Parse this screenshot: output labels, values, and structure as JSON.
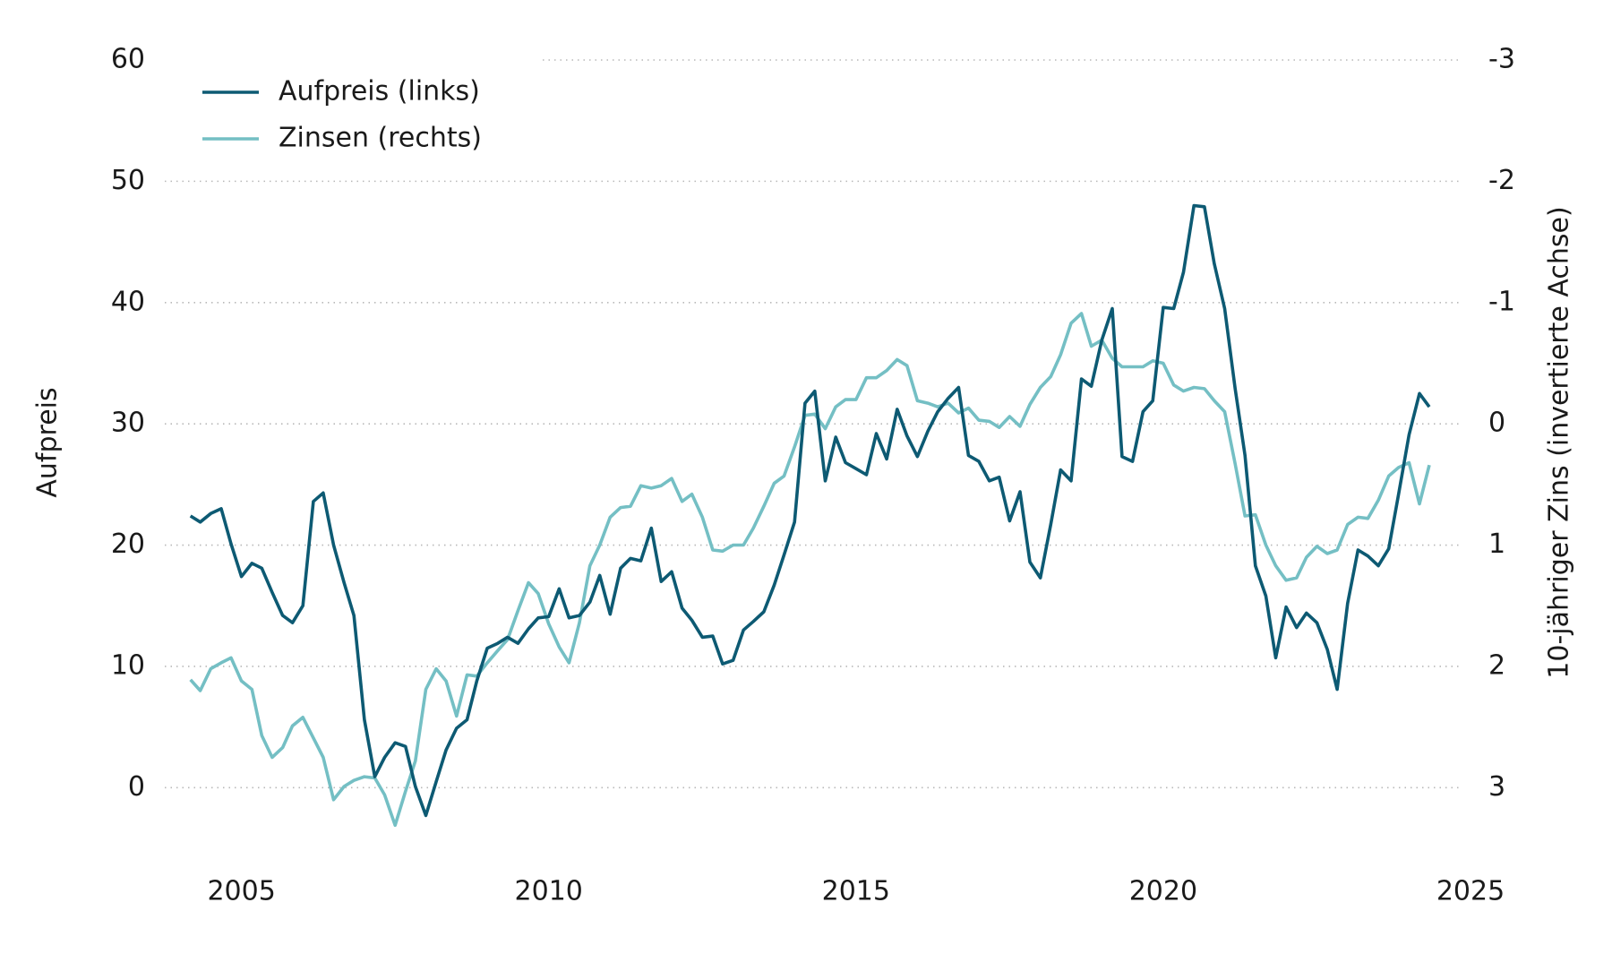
{
  "chart_data": {
    "type": "line",
    "ylabel": "Aufpreis",
    "y2label": "10-jähriger Zins (invertierte Achse)",
    "legend": "upper left",
    "grid": true,
    "xlim": [
      2004,
      2025
    ],
    "xticks": [
      2005,
      2010,
      2015,
      2020,
      2025
    ],
    "ylim": [
      -5,
      60
    ],
    "yticks": [
      0,
      10,
      20,
      30,
      40,
      50,
      60
    ],
    "y2lim": [
      3.5,
      -3
    ],
    "y2ticks": [
      -3,
      -2,
      -1,
      0,
      1,
      2,
      3
    ],
    "x": [
      2004.17,
      2004.33,
      2004.5,
      2004.67,
      2004.83,
      2005,
      2005.17,
      2005.33,
      2005.5,
      2005.67,
      2005.83,
      2006,
      2006.17,
      2006.33,
      2006.5,
      2006.67,
      2006.83,
      2007,
      2007.17,
      2007.33,
      2007.5,
      2007.67,
      2007.83,
      2008,
      2008.17,
      2008.33,
      2008.5,
      2008.67,
      2008.83,
      2009,
      2009.17,
      2009.33,
      2009.5,
      2009.67,
      2009.83,
      2010,
      2010.17,
      2010.33,
      2010.5,
      2010.67,
      2010.83,
      2011,
      2011.17,
      2011.33,
      2011.5,
      2011.67,
      2011.83,
      2012,
      2012.17,
      2012.33,
      2012.5,
      2012.67,
      2012.83,
      2013,
      2013.17,
      2013.33,
      2013.5,
      2013.67,
      2013.83,
      2014,
      2014.17,
      2014.33,
      2014.5,
      2014.67,
      2014.83,
      2015,
      2015.17,
      2015.33,
      2015.5,
      2015.67,
      2015.83,
      2016,
      2016.17,
      2016.33,
      2016.5,
      2016.67,
      2016.83,
      2017,
      2017.17,
      2017.33,
      2017.5,
      2017.67,
      2017.83,
      2018,
      2018.17,
      2018.33,
      2018.5,
      2018.67,
      2018.83,
      2019,
      2019.17,
      2019.33,
      2019.5,
      2019.67,
      2019.83,
      2020,
      2020.17,
      2020.33,
      2020.5,
      2020.67,
      2020.83,
      2021,
      2021.17,
      2021.33,
      2021.5,
      2021.67,
      2021.83,
      2022,
      2022.17,
      2022.33,
      2022.5,
      2022.67,
      2022.83,
      2023,
      2023.17,
      2023.33,
      2023.5,
      2023.67,
      2023.83,
      2024,
      2024.17,
      2024.33
    ],
    "series": [
      {
        "name": "Aufpreis (links)",
        "color": "#0d5a73",
        "values": [
          22.4,
          21.9,
          22.6,
          23.0,
          20.1,
          17.4,
          18.5,
          18.1,
          16.1,
          14.2,
          13.6,
          15.0,
          23.6,
          24.3,
          20.0,
          16.9,
          14.2,
          5.6,
          0.9,
          2.5,
          3.7,
          3.4,
          0.1,
          -2.3,
          0.5,
          3.1,
          4.9,
          5.6,
          8.8,
          11.5,
          11.9,
          12.4,
          11.9,
          13.1,
          14.0,
          14.1,
          16.4,
          14.0,
          14.2,
          15.3,
          17.5,
          14.3,
          18.1,
          18.9,
          18.7,
          21.4,
          17.0,
          17.8,
          14.8,
          13.8,
          12.4,
          12.5,
          10.2,
          10.5,
          13.0,
          13.7,
          14.5,
          16.7,
          19.2,
          21.9,
          31.7,
          32.7,
          25.3,
          28.9,
          26.8,
          26.3,
          25.8,
          29.2,
          27.1,
          31.2,
          29.0,
          27.3,
          29.4,
          31.0,
          32.1,
          33.0,
          27.4,
          26.9,
          25.3,
          25.6,
          22.0,
          24.4,
          18.6,
          17.3,
          21.7,
          26.2,
          25.3,
          33.7,
          33.1,
          36.9,
          39.5,
          27.3,
          26.9,
          31.0,
          31.9,
          39.6,
          39.5,
          42.5,
          48.0,
          47.9,
          43.2,
          39.5,
          32.9,
          27.4,
          18.3,
          15.8,
          10.7,
          14.9,
          13.2,
          14.4,
          13.6,
          11.4,
          8.1,
          15.2,
          19.6,
          19.1,
          18.3,
          19.7,
          24.2,
          29.1,
          32.5,
          31.4
        ]
      },
      {
        "name": "Zinsen (rechts)",
        "color": "#74bfc4",
        "axis": "y2",
        "values": [
          2.11,
          2.2,
          2.02,
          1.97,
          1.93,
          2.12,
          2.19,
          2.57,
          2.75,
          2.67,
          2.49,
          2.42,
          2.59,
          2.75,
          3.1,
          2.99,
          2.94,
          2.91,
          2.92,
          3.06,
          3.31,
          3.03,
          2.78,
          2.19,
          2.02,
          2.12,
          2.41,
          2.07,
          2.08,
          1.97,
          1.87,
          1.78,
          1.54,
          1.31,
          1.4,
          1.65,
          1.84,
          1.97,
          1.64,
          1.17,
          1.0,
          0.77,
          0.69,
          0.68,
          0.51,
          0.53,
          0.51,
          0.45,
          0.64,
          0.58,
          0.77,
          1.04,
          1.05,
          1.0,
          1.0,
          0.86,
          0.68,
          0.49,
          0.43,
          0.19,
          -0.07,
          -0.08,
          0.04,
          -0.14,
          -0.2,
          -0.2,
          -0.38,
          -0.38,
          -0.44,
          -0.53,
          -0.48,
          -0.19,
          -0.17,
          -0.14,
          -0.17,
          -0.09,
          -0.13,
          -0.03,
          -0.02,
          0.03,
          -0.06,
          0.02,
          -0.16,
          -0.3,
          -0.39,
          -0.57,
          -0.83,
          -0.91,
          -0.64,
          -0.69,
          -0.54,
          -0.47,
          -0.47,
          -0.47,
          -0.52,
          -0.5,
          -0.32,
          -0.27,
          -0.3,
          -0.29,
          -0.19,
          -0.1,
          0.33,
          0.76,
          0.75,
          1.0,
          1.17,
          1.29,
          1.27,
          1.1,
          1.01,
          1.07,
          1.04,
          0.83,
          0.77,
          0.78,
          0.63,
          0.43,
          0.36,
          0.32,
          0.66,
          0.34
        ]
      }
    ]
  }
}
